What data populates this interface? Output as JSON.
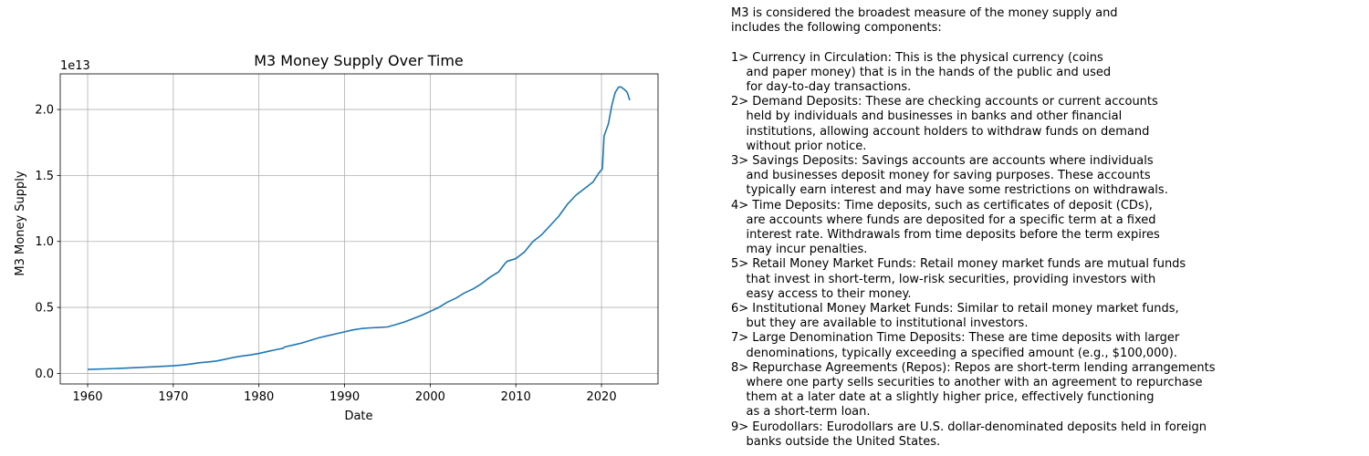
{
  "chart_data": {
    "type": "line",
    "title": "M3 Money Supply Over Time",
    "xlabel": "Date",
    "ylabel": "M3 Money Supply",
    "y_offset_label": "1e13",
    "x_unit": "year",
    "xlim": [
      1956.8,
      2026.6
    ],
    "ylim": [
      -0.08,
      2.27
    ],
    "x_ticks": [
      1960,
      1970,
      1980,
      1990,
      2000,
      2010,
      2020
    ],
    "x_tick_labels": [
      "1960",
      "1970",
      "1980",
      "1990",
      "2000",
      "2010",
      "2020"
    ],
    "y_ticks": [
      0.0,
      0.5,
      1.0,
      1.5,
      2.0
    ],
    "y_tick_labels": [
      "0.0",
      "0.5",
      "1.0",
      "1.5",
      "2.0"
    ],
    "grid": true,
    "line_color": "#1f77b4",
    "series": [
      {
        "x": [
          1960,
          1962,
          1964,
          1966,
          1968,
          1970,
          1971,
          1972,
          1973,
          1974,
          1975,
          1976,
          1977,
          1978,
          1979,
          1980,
          1981,
          1982,
          1982.8,
          1983,
          1984,
          1985,
          1986,
          1987,
          1988,
          1989,
          1990,
          1991,
          1992,
          1993,
          1994,
          1995,
          1996,
          1997,
          1998,
          1999,
          2000,
          2001,
          2002,
          2003,
          2004,
          2005,
          2006,
          2007,
          2008,
          2008.7,
          2009,
          2010,
          2011,
          2011.5,
          2012,
          2013,
          2014,
          2015,
          2016,
          2017,
          2018,
          2019,
          2019.7,
          2020.1,
          2020.3,
          2020.8,
          2021.2,
          2021.6,
          2022.0,
          2022.3,
          2022.7,
          2023.0,
          2023.3
        ],
        "y": [
          0.03,
          0.034,
          0.039,
          0.045,
          0.051,
          0.058,
          0.063,
          0.071,
          0.08,
          0.086,
          0.093,
          0.106,
          0.121,
          0.131,
          0.14,
          0.151,
          0.166,
          0.18,
          0.19,
          0.2,
          0.215,
          0.23,
          0.25,
          0.27,
          0.285,
          0.3,
          0.315,
          0.33,
          0.34,
          0.345,
          0.348,
          0.352,
          0.37,
          0.39,
          0.415,
          0.44,
          0.47,
          0.5,
          0.54,
          0.57,
          0.61,
          0.64,
          0.68,
          0.73,
          0.77,
          0.83,
          0.85,
          0.87,
          0.92,
          0.96,
          1.0,
          1.05,
          1.12,
          1.19,
          1.28,
          1.35,
          1.4,
          1.45,
          1.52,
          1.55,
          1.8,
          1.89,
          2.03,
          2.13,
          2.17,
          2.17,
          2.15,
          2.13,
          2.07
        ]
      }
    ]
  },
  "description": {
    "lines": [
      "M3 is considered the broadest measure of the money supply and",
      "includes the following components:",
      "",
      "1> Currency in Circulation: This is the physical currency (coins",
      "    and paper money) that is in the hands of the public and used",
      "    for day-to-day transactions.",
      "2> Demand Deposits: These are checking accounts or current accounts",
      "    held by individuals and businesses in banks and other financial",
      "    institutions, allowing account holders to withdraw funds on demand",
      "    without prior notice.",
      "3> Savings Deposits: Savings accounts are accounts where individuals",
      "    and businesses deposit money for saving purposes. These accounts",
      "    typically earn interest and may have some restrictions on withdrawals.",
      "4> Time Deposits: Time deposits, such as certificates of deposit (CDs),",
      "    are accounts where funds are deposited for a specific term at a fixed",
      "    interest rate. Withdrawals from time deposits before the term expires",
      "    may incur penalties.",
      "5> Retail Money Market Funds: Retail money market funds are mutual funds",
      "    that invest in short-term, low-risk securities, providing investors with",
      "    easy access to their money.",
      "6> Institutional Money Market Funds: Similar to retail money market funds,",
      "    but they are available to institutional investors.",
      "7> Large Denomination Time Deposits: These are time deposits with larger",
      "    denominations, typically exceeding a specified amount (e.g., $100,000).",
      "8> Repurchase Agreements (Repos): Repos are short-term lending arrangements",
      "    where one party sells securities to another with an agreement to repurchase",
      "    them at a later date at a slightly higher price, effectively functioning",
      "    as a short-term loan.",
      "9> Eurodollars: Eurodollars are U.S. dollar-denominated deposits held in foreign",
      "    banks outside the United States."
    ]
  }
}
